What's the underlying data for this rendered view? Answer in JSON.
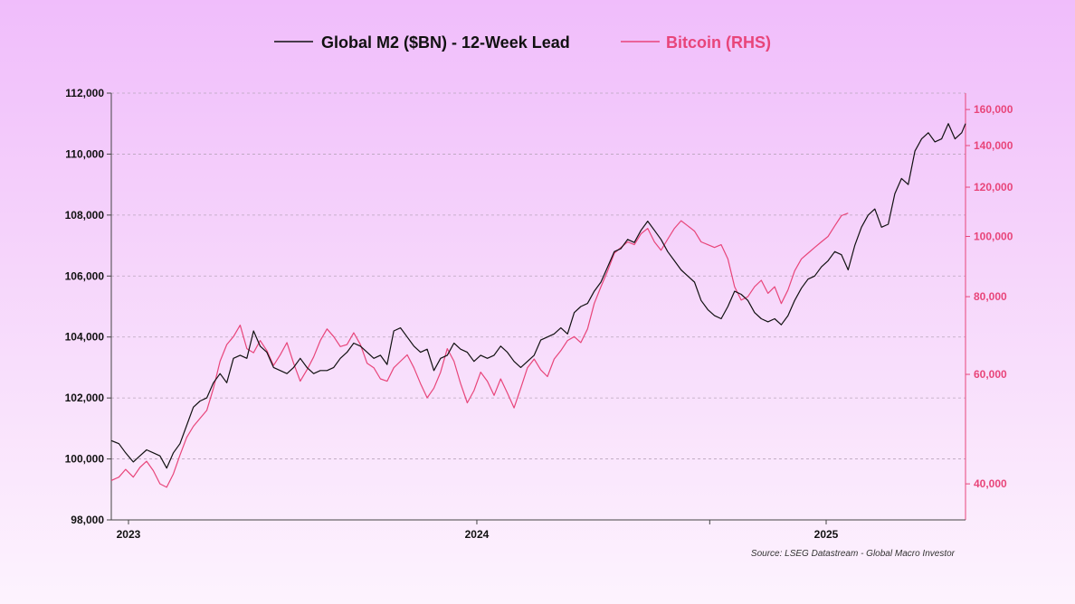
{
  "chart_data": {
    "type": "line",
    "title": "",
    "legend_position": "top-center",
    "grid": true,
    "source": "Source: LSEG Datastream - Global Macro Investor",
    "x_axis": {
      "range": [
        "2022-12-28",
        "2025-06-10"
      ],
      "ticks": [
        {
          "date": "2023-01-15",
          "label": "2023"
        },
        {
          "date": "2024-01-15",
          "label": "2024"
        },
        {
          "date": "2024-09-15",
          "label": ""
        },
        {
          "date": "2025-01-15",
          "label": "2025"
        }
      ]
    },
    "y_left": {
      "scale": "linear",
      "ylim": [
        98000,
        112000
      ],
      "ticks": [
        98000,
        100000,
        102000,
        104000,
        106000,
        108000,
        110000,
        112000
      ],
      "tick_labels": [
        "98,000",
        "100,000",
        "102,000",
        "104,000",
        "106,000",
        "108,000",
        "110,000",
        "112,000"
      ],
      "color": "#111111"
    },
    "y_right": {
      "scale": "log",
      "ylim": [
        35000,
        170000
      ],
      "ticks": [
        40000,
        60000,
        80000,
        100000,
        120000,
        140000,
        160000
      ],
      "tick_labels": [
        "40,000",
        "60,000",
        "80,000",
        "100,000",
        "120,000",
        "140,000",
        "160,000"
      ],
      "color": "#e8457a"
    },
    "series": [
      {
        "name": "Global M2 ($BN) - 12-Week Lead",
        "axis": "left",
        "color": "#111111",
        "points": [
          [
            "2022-12-28",
            100600
          ],
          [
            "2023-01-05",
            100500
          ],
          [
            "2023-01-12",
            100200
          ],
          [
            "2023-01-20",
            99900
          ],
          [
            "2023-01-27",
            100100
          ],
          [
            "2023-02-03",
            100300
          ],
          [
            "2023-02-10",
            100200
          ],
          [
            "2023-02-17",
            100100
          ],
          [
            "2023-02-24",
            99700
          ],
          [
            "2023-03-03",
            100200
          ],
          [
            "2023-03-10",
            100500
          ],
          [
            "2023-03-17",
            101100
          ],
          [
            "2023-03-24",
            101700
          ],
          [
            "2023-03-31",
            101900
          ],
          [
            "2023-04-07",
            102000
          ],
          [
            "2023-04-14",
            102500
          ],
          [
            "2023-04-21",
            102800
          ],
          [
            "2023-04-28",
            102500
          ],
          [
            "2023-05-05",
            103300
          ],
          [
            "2023-05-12",
            103400
          ],
          [
            "2023-05-19",
            103300
          ],
          [
            "2023-05-26",
            104200
          ],
          [
            "2023-06-02",
            103700
          ],
          [
            "2023-06-09",
            103500
          ],
          [
            "2023-06-16",
            103000
          ],
          [
            "2023-06-23",
            102900
          ],
          [
            "2023-06-30",
            102800
          ],
          [
            "2023-07-07",
            103000
          ],
          [
            "2023-07-14",
            103300
          ],
          [
            "2023-07-21",
            103000
          ],
          [
            "2023-07-28",
            102800
          ],
          [
            "2023-08-04",
            102900
          ],
          [
            "2023-08-11",
            102900
          ],
          [
            "2023-08-18",
            103000
          ],
          [
            "2023-08-25",
            103300
          ],
          [
            "2023-09-01",
            103500
          ],
          [
            "2023-09-08",
            103800
          ],
          [
            "2023-09-15",
            103700
          ],
          [
            "2023-09-22",
            103500
          ],
          [
            "2023-09-29",
            103300
          ],
          [
            "2023-10-06",
            103400
          ],
          [
            "2023-10-13",
            103100
          ],
          [
            "2023-10-20",
            104200
          ],
          [
            "2023-10-27",
            104300
          ],
          [
            "2023-11-03",
            104000
          ],
          [
            "2023-11-10",
            103700
          ],
          [
            "2023-11-17",
            103500
          ],
          [
            "2023-11-24",
            103600
          ],
          [
            "2023-12-01",
            102900
          ],
          [
            "2023-12-08",
            103300
          ],
          [
            "2023-12-15",
            103400
          ],
          [
            "2023-12-22",
            103800
          ],
          [
            "2023-12-29",
            103600
          ],
          [
            "2024-01-05",
            103500
          ],
          [
            "2024-01-12",
            103200
          ],
          [
            "2024-01-19",
            103400
          ],
          [
            "2024-01-26",
            103300
          ],
          [
            "2024-02-02",
            103400
          ],
          [
            "2024-02-09",
            103700
          ],
          [
            "2024-02-16",
            103500
          ],
          [
            "2024-02-23",
            103200
          ],
          [
            "2024-03-01",
            103000
          ],
          [
            "2024-03-08",
            103200
          ],
          [
            "2024-03-15",
            103400
          ],
          [
            "2024-03-22",
            103900
          ],
          [
            "2024-03-29",
            104000
          ],
          [
            "2024-04-05",
            104100
          ],
          [
            "2024-04-12",
            104300
          ],
          [
            "2024-04-19",
            104100
          ],
          [
            "2024-04-26",
            104800
          ],
          [
            "2024-05-03",
            105000
          ],
          [
            "2024-05-10",
            105100
          ],
          [
            "2024-05-17",
            105500
          ],
          [
            "2024-05-24",
            105800
          ],
          [
            "2024-05-31",
            106300
          ],
          [
            "2024-06-07",
            106800
          ],
          [
            "2024-06-14",
            106900
          ],
          [
            "2024-06-21",
            107200
          ],
          [
            "2024-06-28",
            107100
          ],
          [
            "2024-07-05",
            107500
          ],
          [
            "2024-07-12",
            107800
          ],
          [
            "2024-07-19",
            107500
          ],
          [
            "2024-07-26",
            107200
          ],
          [
            "2024-08-02",
            106800
          ],
          [
            "2024-08-09",
            106500
          ],
          [
            "2024-08-16",
            106200
          ],
          [
            "2024-08-23",
            106000
          ],
          [
            "2024-08-30",
            105800
          ],
          [
            "2024-09-06",
            105200
          ],
          [
            "2024-09-13",
            104900
          ],
          [
            "2024-09-20",
            104700
          ],
          [
            "2024-09-27",
            104600
          ],
          [
            "2024-10-04",
            105000
          ],
          [
            "2024-10-11",
            105500
          ],
          [
            "2024-10-18",
            105400
          ],
          [
            "2024-10-25",
            105200
          ],
          [
            "2024-11-01",
            104800
          ],
          [
            "2024-11-08",
            104600
          ],
          [
            "2024-11-15",
            104500
          ],
          [
            "2024-11-22",
            104600
          ],
          [
            "2024-11-29",
            104400
          ],
          [
            "2024-12-06",
            104700
          ],
          [
            "2024-12-13",
            105200
          ],
          [
            "2024-12-20",
            105600
          ],
          [
            "2024-12-27",
            105900
          ],
          [
            "2025-01-03",
            106000
          ],
          [
            "2025-01-10",
            106300
          ],
          [
            "2025-01-17",
            106500
          ],
          [
            "2025-01-24",
            106800
          ],
          [
            "2025-01-31",
            106700
          ],
          [
            "2025-02-07",
            106200
          ],
          [
            "2025-02-14",
            107000
          ],
          [
            "2025-02-21",
            107600
          ],
          [
            "2025-02-28",
            108000
          ],
          [
            "2025-03-07",
            108200
          ],
          [
            "2025-03-14",
            107600
          ],
          [
            "2025-03-21",
            107700
          ],
          [
            "2025-03-28",
            108700
          ],
          [
            "2025-04-04",
            109200
          ],
          [
            "2025-04-11",
            109000
          ],
          [
            "2025-04-18",
            110100
          ],
          [
            "2025-04-25",
            110500
          ],
          [
            "2025-05-02",
            110700
          ],
          [
            "2025-05-09",
            110400
          ],
          [
            "2025-05-16",
            110500
          ],
          [
            "2025-05-23",
            111000
          ],
          [
            "2025-05-30",
            110500
          ],
          [
            "2025-06-06",
            110700
          ],
          [
            "2025-06-10",
            111000
          ]
        ]
      },
      {
        "name": "Bitcoin (RHS)",
        "axis": "right",
        "color": "#e8457a",
        "points": [
          [
            "2022-12-28",
            40500
          ],
          [
            "2023-01-05",
            41000
          ],
          [
            "2023-01-12",
            42200
          ],
          [
            "2023-01-20",
            41000
          ],
          [
            "2023-01-27",
            42500
          ],
          [
            "2023-02-03",
            43500
          ],
          [
            "2023-02-10",
            42000
          ],
          [
            "2023-02-17",
            40000
          ],
          [
            "2023-02-24",
            39500
          ],
          [
            "2023-03-03",
            41500
          ],
          [
            "2023-03-10",
            44500
          ],
          [
            "2023-03-17",
            47500
          ],
          [
            "2023-03-24",
            49500
          ],
          [
            "2023-03-31",
            51000
          ],
          [
            "2023-04-07",
            52500
          ],
          [
            "2023-04-14",
            57000
          ],
          [
            "2023-04-21",
            63000
          ],
          [
            "2023-04-28",
            67000
          ],
          [
            "2023-05-05",
            69000
          ],
          [
            "2023-05-12",
            72000
          ],
          [
            "2023-05-19",
            66000
          ],
          [
            "2023-05-26",
            65000
          ],
          [
            "2023-06-02",
            68000
          ],
          [
            "2023-06-09",
            65500
          ],
          [
            "2023-06-16",
            62000
          ],
          [
            "2023-06-23",
            64500
          ],
          [
            "2023-06-30",
            67500
          ],
          [
            "2023-07-07",
            62500
          ],
          [
            "2023-07-14",
            58500
          ],
          [
            "2023-07-21",
            61000
          ],
          [
            "2023-07-28",
            64000
          ],
          [
            "2023-08-04",
            68000
          ],
          [
            "2023-08-11",
            71000
          ],
          [
            "2023-08-18",
            69000
          ],
          [
            "2023-08-25",
            66500
          ],
          [
            "2023-09-01",
            67000
          ],
          [
            "2023-09-08",
            70000
          ],
          [
            "2023-09-15",
            67000
          ],
          [
            "2023-09-22",
            62500
          ],
          [
            "2023-09-29",
            61500
          ],
          [
            "2023-10-06",
            59000
          ],
          [
            "2023-10-13",
            58500
          ],
          [
            "2023-10-20",
            61500
          ],
          [
            "2023-10-27",
            63000
          ],
          [
            "2023-11-03",
            64500
          ],
          [
            "2023-11-10",
            61500
          ],
          [
            "2023-11-17",
            58000
          ],
          [
            "2023-11-24",
            55000
          ],
          [
            "2023-12-01",
            57000
          ],
          [
            "2023-12-08",
            60500
          ],
          [
            "2023-12-15",
            66000
          ],
          [
            "2023-12-22",
            63000
          ],
          [
            "2023-12-29",
            58000
          ],
          [
            "2024-01-05",
            54000
          ],
          [
            "2024-01-12",
            56500
          ],
          [
            "2024-01-19",
            60500
          ],
          [
            "2024-01-26",
            58500
          ],
          [
            "2024-02-02",
            55500
          ],
          [
            "2024-02-09",
            59000
          ],
          [
            "2024-02-16",
            56000
          ],
          [
            "2024-02-23",
            53000
          ],
          [
            "2024-03-01",
            57000
          ],
          [
            "2024-03-08",
            61500
          ],
          [
            "2024-03-15",
            63500
          ],
          [
            "2024-03-22",
            61000
          ],
          [
            "2024-03-29",
            59500
          ],
          [
            "2024-04-05",
            63500
          ],
          [
            "2024-04-12",
            65500
          ],
          [
            "2024-04-19",
            68000
          ],
          [
            "2024-04-26",
            69000
          ],
          [
            "2024-05-03",
            67500
          ],
          [
            "2024-05-10",
            71000
          ],
          [
            "2024-05-17",
            78000
          ],
          [
            "2024-05-24",
            83000
          ],
          [
            "2024-05-31",
            88000
          ],
          [
            "2024-06-07",
            94000
          ],
          [
            "2024-06-14",
            96000
          ],
          [
            "2024-06-21",
            98000
          ],
          [
            "2024-06-28",
            97000
          ],
          [
            "2024-07-05",
            101000
          ],
          [
            "2024-07-12",
            103000
          ],
          [
            "2024-07-19",
            98000
          ],
          [
            "2024-07-26",
            95000
          ],
          [
            "2024-08-02",
            99000
          ],
          [
            "2024-08-09",
            103000
          ],
          [
            "2024-08-16",
            106000
          ],
          [
            "2024-08-23",
            104000
          ],
          [
            "2024-08-30",
            102000
          ],
          [
            "2024-09-06",
            98000
          ],
          [
            "2024-09-13",
            97000
          ],
          [
            "2024-09-20",
            96000
          ],
          [
            "2024-09-27",
            97000
          ],
          [
            "2024-10-04",
            92000
          ],
          [
            "2024-10-11",
            83000
          ],
          [
            "2024-10-18",
            79000
          ],
          [
            "2024-10-25",
            80000
          ],
          [
            "2024-11-01",
            83000
          ],
          [
            "2024-11-08",
            85000
          ],
          [
            "2024-11-15",
            81000
          ],
          [
            "2024-11-22",
            83000
          ],
          [
            "2024-11-29",
            78000
          ],
          [
            "2024-12-06",
            82000
          ],
          [
            "2024-12-13",
            88000
          ],
          [
            "2024-12-20",
            92000
          ],
          [
            "2024-12-27",
            94000
          ],
          [
            "2025-01-03",
            96000
          ],
          [
            "2025-01-10",
            98000
          ],
          [
            "2025-01-17",
            100000
          ],
          [
            "2025-01-24",
            104000
          ],
          [
            "2025-01-31",
            108000
          ],
          [
            "2025-02-07",
            109000
          ]
        ]
      }
    ]
  }
}
